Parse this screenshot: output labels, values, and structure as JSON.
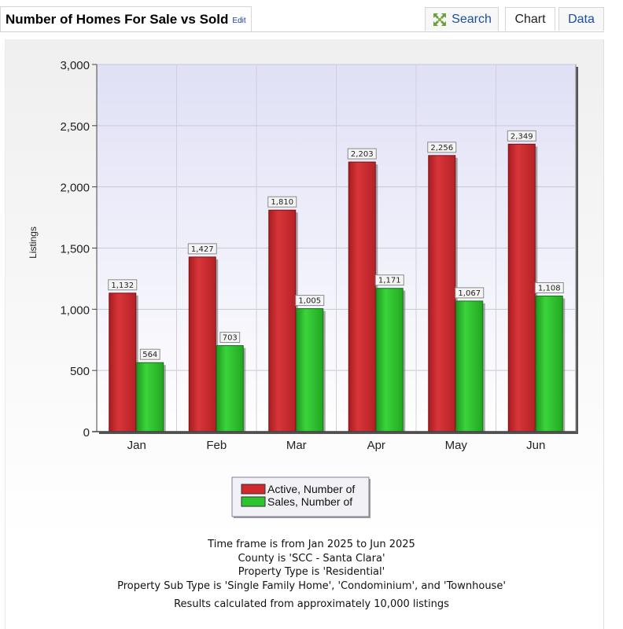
{
  "header": {
    "title": "Number of Homes For Sale vs Sold",
    "edit_label": "Edit",
    "tabs": [
      {
        "label": "Search",
        "icon": "expand-arrows-icon"
      },
      {
        "label": "Chart"
      },
      {
        "label": "Data"
      }
    ]
  },
  "chart_data": {
    "type": "bar",
    "title": "",
    "xlabel": "",
    "ylabel": "Listings",
    "categories": [
      "Jan",
      "Feb",
      "Mar",
      "Apr",
      "May",
      "Jun"
    ],
    "ylim": [
      0,
      3000
    ],
    "yticks": [
      "0",
      "500",
      "1,000",
      "1,500",
      "2,000",
      "2,500",
      "3,000"
    ],
    "grid": true,
    "legend_position": "bottom-center",
    "series": [
      {
        "name": "Active, Number of",
        "color": "#d12a2e",
        "values": [
          1132,
          1427,
          1810,
          2203,
          2256,
          2349
        ],
        "labels": [
          "1,132",
          "1,427",
          "1,810",
          "2,203",
          "2,256",
          "2,349"
        ]
      },
      {
        "name": "Sales, Number of",
        "color": "#2ec42e",
        "values": [
          564,
          703,
          1005,
          1171,
          1067,
          1108
        ],
        "labels": [
          "564",
          "703",
          "1,005",
          "1,171",
          "1,067",
          "1,108"
        ]
      }
    ]
  },
  "notes": [
    "Time frame is from Jan 2025 to Jun 2025",
    "County is 'SCC - Santa Clara'",
    "Property Type is 'Residential'",
    "Property Sub Type is 'Single Family Home', 'Condominium', and 'Townhouse'"
  ],
  "footer": "Results calculated from approximately 10,000 listings"
}
